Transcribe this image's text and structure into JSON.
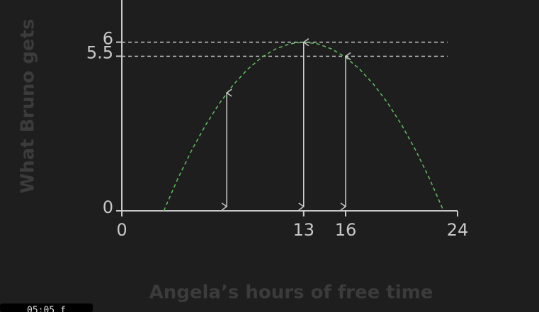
{
  "chart_data": {
    "type": "line",
    "x_label": "Angela’s hours of free time",
    "y_label": "What Bruno gets",
    "xlim": [
      0,
      24
    ],
    "ylim": [
      0,
      7.5
    ],
    "xticks": [
      0,
      13,
      16,
      24
    ],
    "yticks": [
      0,
      5.5,
      6
    ],
    "grid": true,
    "curve": {
      "color": "#5fbf5f",
      "x": [
        3,
        4,
        5,
        6,
        7,
        8,
        9,
        10,
        11,
        12,
        13,
        14,
        15,
        16,
        17,
        18,
        19,
        20,
        21,
        22,
        23
      ],
      "values": [
        0,
        1.14,
        2.16,
        3.06,
        3.84,
        4.5,
        5.04,
        5.46,
        5.76,
        5.94,
        6,
        5.94,
        5.76,
        5.46,
        5.04,
        4.5,
        3.84,
        3.06,
        2.16,
        1.14,
        0
      ]
    },
    "arrows": {
      "color": "#c8c8c8",
      "x": [
        7.5,
        13,
        16
      ],
      "values": [
        4.2,
        6,
        5.5
      ]
    },
    "overlay_text": "05:05 f"
  }
}
